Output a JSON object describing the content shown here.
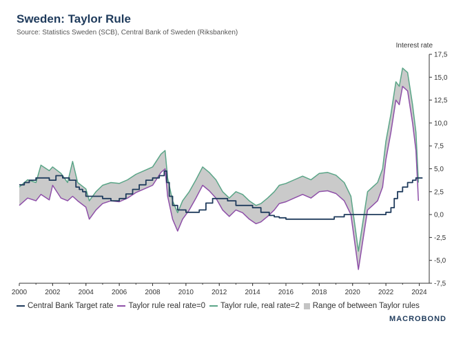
{
  "chart_data": {
    "type": "line",
    "title": "Sweden: Taylor Rule",
    "subtitle": "Source: Statistics Sweden (SCB), Central Bank of Sweden (Riksbanken)",
    "ylabel": "Interest rate",
    "xlabel": "",
    "xlim": [
      2000,
      2024.6
    ],
    "ylim": [
      -7.5,
      17.5
    ],
    "yticks": [
      "17,5",
      "15,0",
      "12,5",
      "10,0",
      "7,5",
      "5,0",
      "2,5",
      "0,0",
      "-2,5",
      "-5,0",
      "-7,5"
    ],
    "xticks": [
      "2000",
      "2002",
      "2004",
      "2006",
      "2008",
      "2010",
      "2012",
      "2014",
      "2016",
      "2018",
      "2020",
      "2022",
      "2024"
    ],
    "colors": {
      "target": "#1f3b5c",
      "real0": "#8e4fa8",
      "real2": "#5aa587",
      "range": "#c4c4c4"
    },
    "series": [
      {
        "name": "Central Bank Target rate",
        "x": [
          2000.0,
          2000.3,
          2000.6,
          2001.0,
          2001.4,
          2001.8,
          2002.2,
          2002.6,
          2003.0,
          2003.4,
          2003.6,
          2003.8,
          2004.0,
          2004.5,
          2005.0,
          2005.5,
          2006.0,
          2006.4,
          2006.8,
          2007.2,
          2007.6,
          2008.0,
          2008.4,
          2008.7,
          2008.85,
          2009.0,
          2009.2,
          2009.5,
          2010.0,
          2010.5,
          2010.8,
          2011.2,
          2011.6,
          2012.0,
          2012.5,
          2013.0,
          2013.5,
          2014.0,
          2014.5,
          2015.0,
          2015.3,
          2015.6,
          2016.0,
          2017.0,
          2018.0,
          2018.9,
          2019.5,
          2020.0,
          2021.0,
          2022.0,
          2022.3,
          2022.5,
          2022.7,
          2023.0,
          2023.3,
          2023.6,
          2023.8,
          2024.0,
          2024.2
        ],
        "values": [
          3.25,
          3.5,
          3.75,
          4.0,
          4.0,
          3.75,
          4.25,
          4.0,
          3.75,
          3.0,
          2.75,
          2.5,
          2.0,
          2.0,
          1.75,
          1.5,
          1.75,
          2.25,
          2.75,
          3.25,
          3.75,
          4.0,
          4.25,
          4.75,
          3.5,
          2.0,
          1.0,
          0.5,
          0.25,
          0.25,
          0.5,
          1.25,
          1.75,
          1.75,
          1.5,
          1.0,
          1.0,
          0.75,
          0.25,
          -0.1,
          -0.25,
          -0.35,
          -0.5,
          -0.5,
          -0.5,
          -0.25,
          0.0,
          0.0,
          0.0,
          0.25,
          0.75,
          1.75,
          2.5,
          3.0,
          3.5,
          3.75,
          4.0,
          4.0,
          4.0
        ]
      },
      {
        "name": "Taylor rule real rate=0",
        "x": [
          2000.0,
          2000.5,
          2001.0,
          2001.3,
          2001.8,
          2002.0,
          2002.5,
          2002.9,
          2003.2,
          2003.5,
          2004.0,
          2004.2,
          2004.6,
          2005.0,
          2005.5,
          2006.0,
          2006.5,
          2007.0,
          2007.5,
          2008.0,
          2008.5,
          2008.75,
          2008.9,
          2009.2,
          2009.5,
          2009.8,
          2010.2,
          2010.6,
          2011.0,
          2011.4,
          2011.8,
          2012.2,
          2012.6,
          2013.0,
          2013.4,
          2013.8,
          2014.2,
          2014.5,
          2014.9,
          2015.3,
          2015.6,
          2016.0,
          2016.5,
          2017.0,
          2017.5,
          2018.0,
          2018.5,
          2019.0,
          2019.5,
          2019.9,
          2020.2,
          2020.35,
          2020.6,
          2020.9,
          2021.2,
          2021.5,
          2021.8,
          2022.0,
          2022.3,
          2022.6,
          2022.8,
          2023.0,
          2023.3,
          2023.6,
          2023.8,
          2023.95
        ],
        "values": [
          1.0,
          1.8,
          1.5,
          2.2,
          1.6,
          3.2,
          1.8,
          1.5,
          2.0,
          1.5,
          0.8,
          -0.5,
          0.5,
          1.2,
          1.5,
          1.4,
          1.8,
          2.4,
          2.8,
          3.2,
          4.6,
          5.0,
          2.0,
          -0.5,
          -1.8,
          -0.5,
          0.5,
          1.8,
          3.2,
          2.6,
          1.8,
          0.5,
          -0.2,
          0.5,
          0.2,
          -0.5,
          -1.0,
          -0.8,
          -0.2,
          0.5,
          1.2,
          1.4,
          1.8,
          2.2,
          1.8,
          2.5,
          2.6,
          2.3,
          1.5,
          0.0,
          -4.0,
          -6.0,
          -3.0,
          0.5,
          1.0,
          1.5,
          3.0,
          6.0,
          9.0,
          12.5,
          12.0,
          14.0,
          13.5,
          10.0,
          7.0,
          1.5
        ]
      },
      {
        "name": "Taylor rule, real rate=2",
        "x": [
          2000.0,
          2000.5,
          2001.0,
          2001.3,
          2001.8,
          2002.0,
          2002.5,
          2002.9,
          2003.2,
          2003.5,
          2004.0,
          2004.2,
          2004.6,
          2005.0,
          2005.5,
          2006.0,
          2006.5,
          2007.0,
          2007.5,
          2008.0,
          2008.5,
          2008.75,
          2008.9,
          2009.2,
          2009.5,
          2009.8,
          2010.2,
          2010.6,
          2011.0,
          2011.4,
          2011.8,
          2012.2,
          2012.6,
          2013.0,
          2013.4,
          2013.8,
          2014.2,
          2014.5,
          2014.9,
          2015.3,
          2015.6,
          2016.0,
          2016.5,
          2017.0,
          2017.5,
          2018.0,
          2018.5,
          2019.0,
          2019.5,
          2019.9,
          2020.2,
          2020.35,
          2020.6,
          2020.9,
          2021.2,
          2021.5,
          2021.8,
          2022.0,
          2022.3,
          2022.6,
          2022.8,
          2023.0,
          2023.3,
          2023.6,
          2023.8,
          2023.95
        ],
        "values": [
          3.0,
          3.8,
          3.5,
          5.4,
          4.8,
          5.2,
          4.5,
          3.5,
          5.8,
          3.5,
          2.8,
          1.5,
          2.5,
          3.2,
          3.5,
          3.4,
          3.8,
          4.4,
          4.8,
          5.2,
          6.6,
          7.0,
          4.0,
          1.5,
          0.2,
          1.5,
          2.5,
          3.8,
          5.2,
          4.6,
          3.8,
          2.5,
          1.8,
          2.5,
          2.2,
          1.5,
          1.0,
          1.2,
          1.8,
          2.5,
          3.2,
          3.4,
          3.8,
          4.2,
          3.8,
          4.5,
          4.6,
          4.3,
          3.5,
          2.0,
          -2.0,
          -4.0,
          -1.0,
          2.5,
          3.0,
          3.5,
          5.0,
          8.0,
          11.0,
          14.5,
          14.0,
          16.0,
          15.5,
          12.0,
          9.0,
          3.5
        ]
      }
    ],
    "range_name": "Range of between Taylor rules",
    "legend_position": "bottom",
    "grid": false
  },
  "footer": {
    "logo": "MACROBOND"
  }
}
